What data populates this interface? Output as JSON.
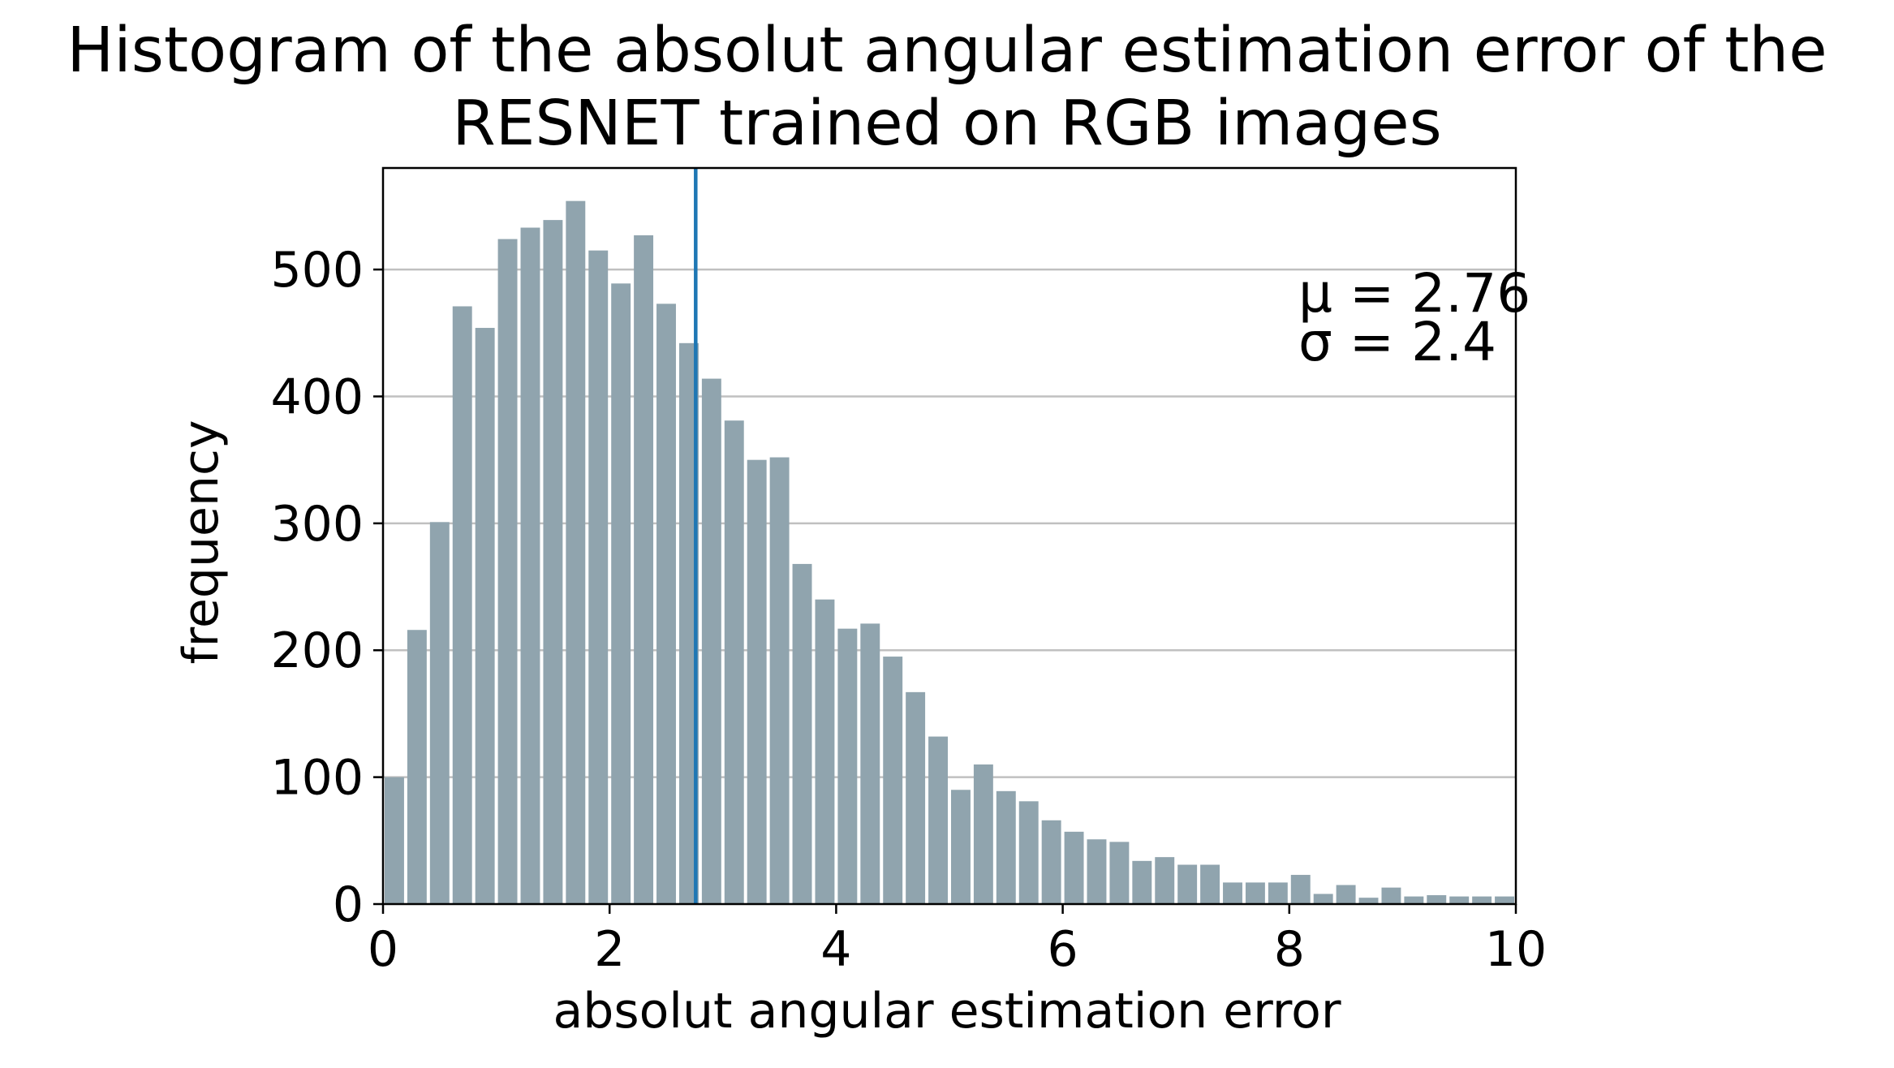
{
  "chart_data": {
    "type": "bar",
    "title_lines": [
      "Histogram of the absolut angular estimation error of the",
      "RESNET trained on RGB images"
    ],
    "xlabel": "absolut angular estimation error",
    "ylabel": "frequency",
    "xlim": [
      0,
      10
    ],
    "ylim": [
      0,
      580
    ],
    "xticks": [
      "0",
      "2",
      "4",
      "6",
      "8",
      "10"
    ],
    "yticks": [
      "0",
      "100",
      "200",
      "300",
      "400",
      "500"
    ],
    "grid": "horizontal",
    "bin_width": 0.2,
    "x": [
      0.1,
      0.3,
      0.5,
      0.7,
      0.9,
      1.1,
      1.3,
      1.5,
      1.7,
      1.9,
      2.1,
      2.3,
      2.5,
      2.7,
      2.9,
      3.1,
      3.3,
      3.5,
      3.7,
      3.9,
      4.1,
      4.3,
      4.5,
      4.7,
      4.9,
      5.1,
      5.3,
      5.5,
      5.7,
      5.9,
      6.1,
      6.3,
      6.5,
      6.7,
      6.9,
      7.1,
      7.3,
      7.5,
      7.7,
      7.9,
      8.1,
      8.3,
      8.5,
      8.7,
      8.9,
      9.1,
      9.3,
      9.5,
      9.7,
      9.9
    ],
    "values": [
      100,
      216,
      301,
      471,
      454,
      524,
      533,
      539,
      554,
      515,
      489,
      527,
      473,
      442,
      414,
      381,
      350,
      352,
      268,
      240,
      217,
      221,
      195,
      167,
      132,
      90,
      110,
      89,
      81,
      66,
      57,
      51,
      49,
      34,
      37,
      31,
      31,
      17,
      17,
      17,
      23,
      8,
      15,
      5,
      13,
      6,
      7,
      6,
      6,
      6
    ],
    "bar_color": "#90a4ae",
    "mean_line": {
      "x": 2.76,
      "color": "#1f77b4"
    },
    "annotations": {
      "mu": "μ = 2.76",
      "sigma": "σ = 2.4"
    }
  }
}
